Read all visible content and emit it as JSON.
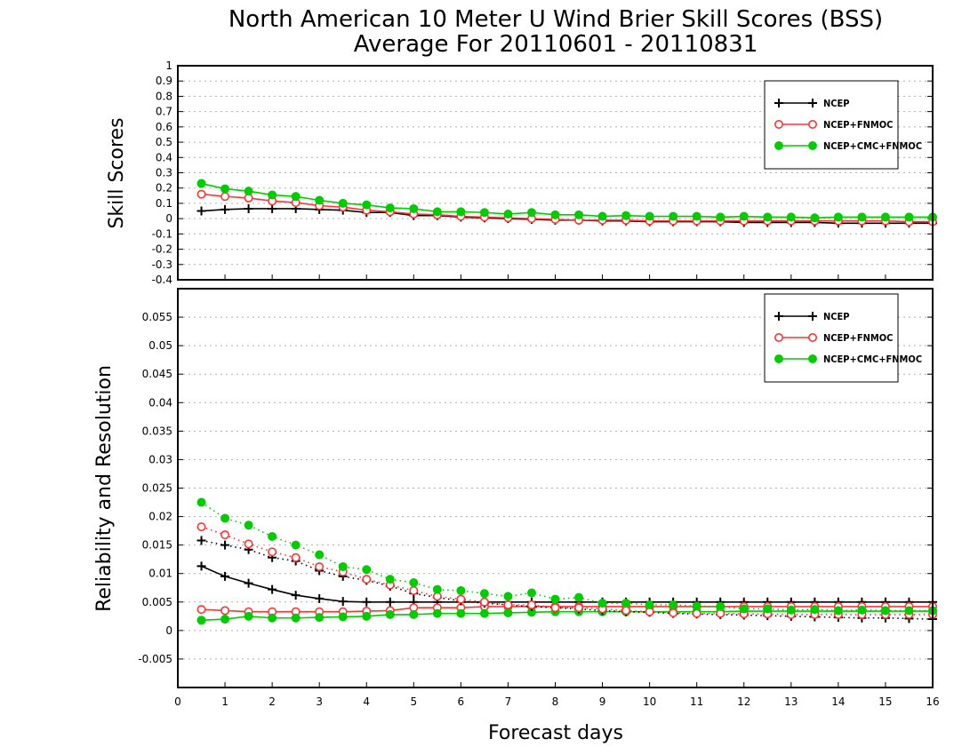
{
  "figure": {
    "title_line1": "North American 10 Meter U Wind Brier Skill Scores (BSS)",
    "title_line2": "Average For 20110601 - 20110831",
    "xlabel": "Forecast days"
  },
  "chart_data": [
    {
      "type": "line",
      "ylabel": "Skill Scores",
      "xlim": [
        0,
        16
      ],
      "ylim": [
        -0.4,
        1
      ],
      "grid": true,
      "legend_position": "top-right",
      "x_ticks": [
        "0",
        "1",
        "2",
        "3",
        "4",
        "5",
        "6",
        "7",
        "8",
        "9",
        "10",
        "11",
        "12",
        "13",
        "14",
        "15",
        "16"
      ],
      "y_ticks": [
        "1",
        "0.9",
        "0.8",
        "0.7",
        "0.6",
        "0.5",
        "0.4",
        "0.3",
        "0.2",
        "0.1",
        "0",
        "-0.1",
        "-0.2",
        "-0.3",
        "-0.4"
      ],
      "x": [
        0.5,
        1,
        1.5,
        2,
        2.5,
        3,
        3.5,
        4,
        4.5,
        5,
        5.5,
        6,
        6.5,
        7,
        7.5,
        8,
        8.5,
        9,
        9.5,
        10,
        10.5,
        11,
        11.5,
        12,
        12.5,
        13,
        13.5,
        14,
        14.5,
        15,
        15.5,
        16
      ],
      "series": [
        {
          "name": "NCEP",
          "color": "#000000",
          "marker": "plus",
          "line": "solid",
          "values": [
            0.05,
            0.06,
            0.065,
            0.065,
            0.065,
            0.06,
            0.055,
            0.04,
            0.04,
            0.02,
            0.02,
            0.01,
            0.005,
            0.0,
            -0.005,
            -0.01,
            -0.01,
            -0.015,
            -0.015,
            -0.02,
            -0.02,
            -0.02,
            -0.02,
            -0.025,
            -0.025,
            -0.025,
            -0.025,
            -0.03,
            -0.03,
            -0.03,
            -0.03,
            -0.03
          ]
        },
        {
          "name": "NCEP+FNMOC",
          "color": "#ff3333",
          "marker": "circle-open",
          "line": "solid",
          "values": [
            0.16,
            0.145,
            0.135,
            0.115,
            0.105,
            0.085,
            0.075,
            0.055,
            0.045,
            0.03,
            0.025,
            0.015,
            0.01,
            0.005,
            0.0,
            -0.005,
            -0.01,
            -0.01,
            -0.01,
            -0.015,
            -0.015,
            -0.015,
            -0.015,
            -0.015,
            -0.015,
            -0.015,
            -0.015,
            -0.015,
            -0.015,
            -0.015,
            -0.02,
            -0.02
          ]
        },
        {
          "name": "NCEP+CMC+FNMOC",
          "color": "#00cc00",
          "marker": "circle-filled",
          "line": "solid",
          "values": [
            0.23,
            0.195,
            0.18,
            0.155,
            0.145,
            0.12,
            0.1,
            0.09,
            0.07,
            0.065,
            0.045,
            0.045,
            0.04,
            0.03,
            0.04,
            0.025,
            0.025,
            0.015,
            0.02,
            0.015,
            0.015,
            0.015,
            0.01,
            0.015,
            0.01,
            0.01,
            0.005,
            0.01,
            0.01,
            0.01,
            0.01,
            0.01
          ]
        }
      ]
    },
    {
      "type": "line",
      "ylabel": "Reliability and Resolution",
      "xlim": [
        0,
        16
      ],
      "ylim": [
        -0.01,
        0.06
      ],
      "grid": true,
      "legend_position": "top-right",
      "x_ticks": [
        "0",
        "1",
        "2",
        "3",
        "4",
        "5",
        "6",
        "7",
        "8",
        "9",
        "10",
        "11",
        "12",
        "13",
        "14",
        "15",
        "16"
      ],
      "y_ticks": [
        "0.055",
        "0.05",
        "0.045",
        "0.04",
        "0.035",
        "0.03",
        "0.025",
        "0.02",
        "0.015",
        "0.01",
        "0.005",
        "0",
        "-0.005"
      ],
      "x": [
        0.5,
        1,
        1.5,
        2,
        2.5,
        3,
        3.5,
        4,
        4.5,
        5,
        5.5,
        6,
        6.5,
        7,
        7.5,
        8,
        8.5,
        9,
        9.5,
        10,
        10.5,
        11,
        11.5,
        12,
        12.5,
        13,
        13.5,
        14,
        14.5,
        15,
        15.5,
        16
      ],
      "series": [
        {
          "name": "NCEP",
          "legend": true,
          "color": "#000000",
          "marker": "plus",
          "line": "solid",
          "values": [
            0.0113,
            0.0095,
            0.0083,
            0.0072,
            0.0062,
            0.0056,
            0.0051,
            0.005,
            0.005,
            0.005,
            0.005,
            0.005,
            0.005,
            0.005,
            0.005,
            0.005,
            0.005,
            0.005,
            0.005,
            0.005,
            0.005,
            0.005,
            0.005,
            0.005,
            0.005,
            0.005,
            0.005,
            0.005,
            0.005,
            0.005,
            0.005,
            0.005
          ]
        },
        {
          "name": "NCEP+FNMOC",
          "legend": true,
          "color": "#ff3333",
          "marker": "circle-open",
          "line": "solid",
          "values": [
            0.0037,
            0.0035,
            0.0033,
            0.0033,
            0.0033,
            0.0033,
            0.0033,
            0.0034,
            0.0035,
            0.004,
            0.004,
            0.004,
            0.0042,
            0.0042,
            0.0042,
            0.0042,
            0.0042,
            0.0042,
            0.0042,
            0.0042,
            0.0042,
            0.0042,
            0.0042,
            0.0042,
            0.0042,
            0.0042,
            0.0042,
            0.0042,
            0.0042,
            0.0042,
            0.0042,
            0.0042
          ]
        },
        {
          "name": "NCEP+CMC+FNMOC",
          "legend": true,
          "color": "#00cc00",
          "marker": "circle-filled",
          "line": "solid",
          "values": [
            0.0018,
            0.002,
            0.0025,
            0.0022,
            0.0022,
            0.0023,
            0.0024,
            0.0025,
            0.0028,
            0.0028,
            0.003,
            0.003,
            0.003,
            0.0031,
            0.0032,
            0.0033,
            0.0033,
            0.0033,
            0.0033,
            0.0033,
            0.0033,
            0.0033,
            0.0033,
            0.0034,
            0.0034,
            0.0034,
            0.0034,
            0.0034,
            0.0034,
            0.0034,
            0.0034,
            0.0034
          ]
        },
        {
          "name": "NCEP",
          "legend": false,
          "color": "#000000",
          "marker": "plus",
          "line": "dotted",
          "values": [
            0.0158,
            0.015,
            0.0142,
            0.0128,
            0.0122,
            0.0105,
            0.0095,
            0.0088,
            0.0078,
            0.0065,
            0.0058,
            0.0052,
            0.0048,
            0.0045,
            0.0042,
            0.004,
            0.0038,
            0.0035,
            0.0033,
            0.0032,
            0.003,
            0.0029,
            0.0028,
            0.0027,
            0.0026,
            0.0025,
            0.0024,
            0.0023,
            0.0022,
            0.0022,
            0.0021,
            0.002
          ]
        },
        {
          "name": "NCEP+FNMOC",
          "legend": false,
          "color": "#ff3333",
          "marker": "circle-open",
          "line": "dotted",
          "values": [
            0.0182,
            0.0168,
            0.0152,
            0.0138,
            0.0128,
            0.0112,
            0.0103,
            0.009,
            0.008,
            0.007,
            0.006,
            0.0055,
            0.005,
            0.0045,
            0.0045,
            0.004,
            0.004,
            0.0038,
            0.0035,
            0.0033,
            0.0031,
            0.003,
            0.003,
            0.0029,
            0.0029,
            0.0028,
            0.0028,
            0.0028,
            0.0028,
            0.0028,
            0.0028,
            0.0028
          ]
        },
        {
          "name": "NCEP+CMC+FNMOC",
          "legend": false,
          "color": "#00cc00",
          "marker": "circle-filled",
          "line": "dotted",
          "values": [
            0.0225,
            0.0197,
            0.0185,
            0.0165,
            0.015,
            0.0133,
            0.0112,
            0.0107,
            0.009,
            0.0084,
            0.0072,
            0.007,
            0.0065,
            0.006,
            0.0066,
            0.0055,
            0.0058,
            0.0048,
            0.0048,
            0.0045,
            0.0045,
            0.0043,
            0.0042,
            0.0038,
            0.0038,
            0.0036,
            0.0037,
            0.0035,
            0.0036,
            0.0035,
            0.0035,
            0.0035
          ]
        }
      ]
    }
  ]
}
